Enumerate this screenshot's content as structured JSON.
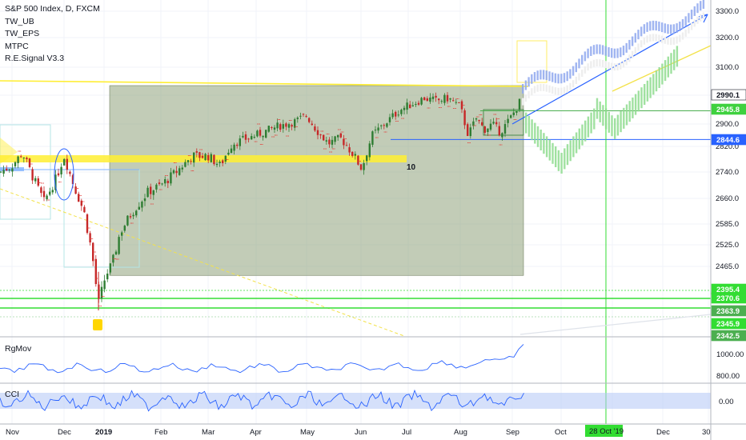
{
  "chart_data": {
    "type": "candlestick",
    "title": "S&P 500 Index, D, FXCM",
    "indicators": [
      "TW_UB",
      "TW_EPS",
      "MTPC",
      "R.E.Signal V3.3"
    ],
    "x_ticks": [
      "Nov",
      "Dec",
      "2019",
      "Feb",
      "Mar",
      "Apr",
      "May",
      "Jun",
      "Jul",
      "Aug",
      "Sep",
      "Oct",
      "Nov",
      "Dec",
      "30"
    ],
    "crosshair_date": "28 Oct '19",
    "y_ticks": [
      3300,
      3200,
      3100,
      3000,
      2900,
      2820,
      2740,
      2660,
      2585,
      2525,
      2465
    ],
    "ylim": [
      2300,
      3320
    ],
    "price_labels": [
      {
        "value": "2990.1",
        "bg": "#ffffff",
        "fg": "#131722"
      },
      {
        "value": "2945.8",
        "bg": "#3fd13f",
        "fg": "#ffffff"
      },
      {
        "value": "2844.6",
        "bg": "#2962ff",
        "fg": "#ffffff"
      },
      {
        "value": "2395.4",
        "bg": "#33dd33",
        "fg": "#ffffff"
      },
      {
        "value": "2370.6",
        "bg": "#33dd33",
        "fg": "#ffffff"
      },
      {
        "value": "2363.9",
        "bg": "#4caf50",
        "fg": "#ffffff"
      },
      {
        "value": "2345.9",
        "bg": "#33dd33",
        "fg": "#ffffff"
      },
      {
        "value": "2342.5",
        "bg": "#4caf50",
        "fg": "#ffffff"
      }
    ],
    "annotation_count": "10",
    "price_series_approx": [
      [
        "Nov",
        2740
      ],
      [
        "Dec",
        2790
      ],
      [
        "Dec",
        2640
      ],
      [
        "2019",
        2350
      ],
      [
        "2019",
        2470
      ],
      [
        "Feb",
        2700
      ],
      [
        "Mar",
        2800
      ],
      [
        "Apr",
        2900
      ],
      [
        "May",
        2940
      ],
      [
        "May",
        2830
      ],
      [
        "Jun",
        2750
      ],
      [
        "Jul",
        2980
      ],
      [
        "Aug",
        2990
      ],
      [
        "Aug",
        2850
      ],
      [
        "Sep",
        2990
      ]
    ],
    "panes": [
      {
        "name": "RgMov",
        "y_ticks": [
          "1000.00",
          "800.00"
        ]
      },
      {
        "name": "CCI",
        "y_ticks": [
          "0.00"
        ]
      }
    ],
    "colors": {
      "up": "#26a69a",
      "down": "#ef5350",
      "box": "#8fa37c",
      "yellow": "#ffee33",
      "blue": "#2962ff",
      "green": "#33dd33",
      "projection_blue": "#8fa8ee",
      "projection_green": "#8fdc8f"
    }
  }
}
